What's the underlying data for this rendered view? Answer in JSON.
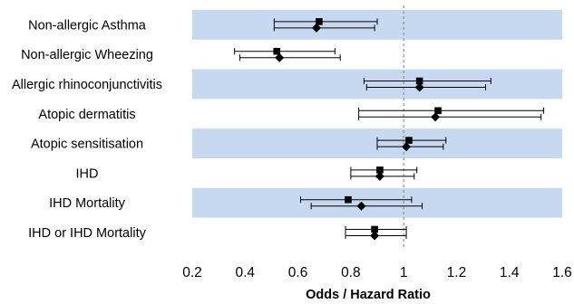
{
  "chart_data": {
    "type": "forest",
    "xlabel": "Odds / Hazard Ratio",
    "xlim": [
      0.2,
      1.6
    ],
    "xticks": [
      0.2,
      0.4,
      0.6,
      0.8,
      1.0,
      1.2,
      1.4,
      1.6
    ],
    "xtick_labels": [
      "0.2",
      "0.4",
      "0.6",
      "0.8",
      "1",
      "1.2",
      "1.4",
      "1.6"
    ],
    "reference_line": 1.0,
    "banded_rows": true,
    "colors": {
      "band": "#c6d9f1",
      "marker": "#000000",
      "reference": "#7f7f7f"
    },
    "series": [
      {
        "marker": "square"
      },
      {
        "marker": "diamond"
      }
    ],
    "rows": [
      {
        "label": "Non-allergic Asthma",
        "square": {
          "estimate": 0.68,
          "ci": [
            0.51,
            0.9
          ]
        },
        "diamond": {
          "estimate": 0.67,
          "ci": [
            0.51,
            0.89
          ]
        }
      },
      {
        "label": "Non-allergic Wheezing",
        "square": {
          "estimate": 0.52,
          "ci": [
            0.36,
            0.74
          ]
        },
        "diamond": {
          "estimate": 0.53,
          "ci": [
            0.38,
            0.76
          ]
        }
      },
      {
        "label": "Allergic rhinoconjunctivitis",
        "square": {
          "estimate": 1.06,
          "ci": [
            0.85,
            1.33
          ]
        },
        "diamond": {
          "estimate": 1.06,
          "ci": [
            0.86,
            1.31
          ]
        }
      },
      {
        "label": "Atopic dermatitis",
        "square": {
          "estimate": 1.13,
          "ci": [
            0.83,
            1.53
          ]
        },
        "diamond": {
          "estimate": 1.12,
          "ci": [
            0.83,
            1.52
          ]
        }
      },
      {
        "label": "Atopic sensitisation",
        "square": {
          "estimate": 1.02,
          "ci": [
            0.9,
            1.16
          ]
        },
        "diamond": {
          "estimate": 1.01,
          "ci": [
            0.9,
            1.15
          ]
        }
      },
      {
        "label": "IHD",
        "square": {
          "estimate": 0.91,
          "ci": [
            0.8,
            1.05
          ]
        },
        "diamond": {
          "estimate": 0.91,
          "ci": [
            0.8,
            1.04
          ]
        }
      },
      {
        "label": "IHD Mortality",
        "square": {
          "estimate": 0.79,
          "ci": [
            0.61,
            1.03
          ]
        },
        "diamond": {
          "estimate": 0.84,
          "ci": [
            0.65,
            1.07
          ]
        }
      },
      {
        "label": "IHD or IHD Mortality",
        "square": {
          "estimate": 0.89,
          "ci": [
            0.78,
            1.01
          ]
        },
        "diamond": {
          "estimate": 0.89,
          "ci": [
            0.78,
            1.01
          ]
        }
      }
    ]
  }
}
